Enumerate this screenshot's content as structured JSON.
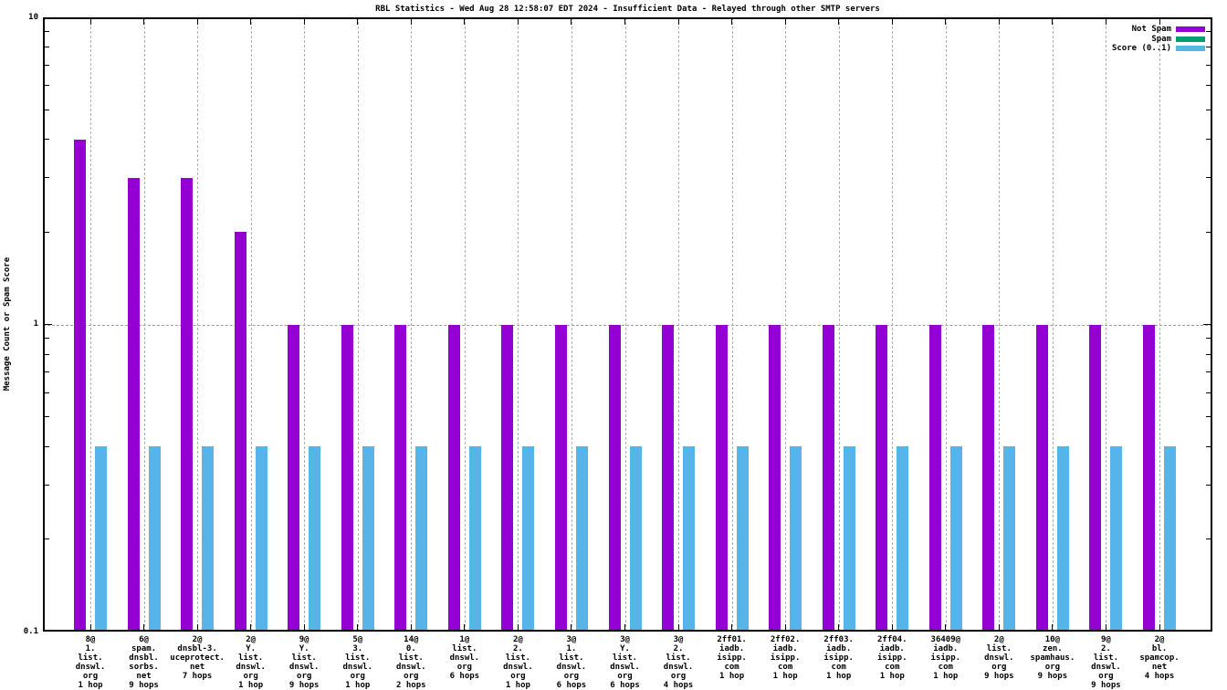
{
  "chart_data": {
    "type": "bar",
    "title": "RBL Statistics - Wed Aug 28 12:58:07 EDT 2024 - Insufficient Data - Relayed through other SMTP servers",
    "ylabel": "Message Count or Spam Score",
    "xlabel": "",
    "y_scale": "log",
    "ylim": [
      0.1,
      10
    ],
    "y_major_tick_labels": [
      "10",
      "1",
      "0.1"
    ],
    "grid": {
      "horizontal_line_at": 1,
      "vertical_lines": "at each category tick",
      "style": "dashed gray"
    },
    "legend": {
      "position": "top-right",
      "entries": [
        {
          "label": "Not Spam",
          "color": "#9400d3"
        },
        {
          "label": "Spam",
          "color": "#009e73"
        },
        {
          "label": "Score (0..1)",
          "color": "#56b4e9"
        }
      ]
    },
    "categories": [
      [
        "8@",
        "1.",
        "list.",
        "dnswl.",
        "org",
        "1 hop"
      ],
      [
        "6@",
        "spam.",
        "dnsbl.",
        "sorbs.",
        "net",
        "9 hops"
      ],
      [
        "2@",
        "dnsbl-3.",
        "uceprotect.",
        "net",
        "7 hops"
      ],
      [
        "2@",
        "Y.",
        "list.",
        "dnswl.",
        "org",
        "1 hop"
      ],
      [
        "9@",
        "Y.",
        "list.",
        "dnswl.",
        "org",
        "9 hops"
      ],
      [
        "5@",
        "3.",
        "list.",
        "dnswl.",
        "org",
        "1 hop"
      ],
      [
        "14@",
        "0.",
        "list.",
        "dnswl.",
        "org",
        "2 hops"
      ],
      [
        "1@",
        "list.",
        "dnswl.",
        "org",
        "6 hops"
      ],
      [
        "2@",
        "2.",
        "list.",
        "dnswl.",
        "org",
        "1 hop"
      ],
      [
        "3@",
        "1.",
        "list.",
        "dnswl.",
        "org",
        "6 hops"
      ],
      [
        "3@",
        "Y.",
        "list.",
        "dnswl.",
        "org",
        "6 hops"
      ],
      [
        "3@",
        "2.",
        "list.",
        "dnswl.",
        "org",
        "4 hops"
      ],
      [
        "2ff01.",
        "iadb.",
        "isipp.",
        "com",
        "1 hop"
      ],
      [
        "2ff02.",
        "iadb.",
        "isipp.",
        "com",
        "1 hop"
      ],
      [
        "2ff03.",
        "iadb.",
        "isipp.",
        "com",
        "1 hop"
      ],
      [
        "2ff04.",
        "iadb.",
        "isipp.",
        "com",
        "1 hop"
      ],
      [
        "36409@",
        "iadb.",
        "isipp.",
        "com",
        "1 hop"
      ],
      [
        "2@",
        "list.",
        "dnswl.",
        "org",
        "9 hops"
      ],
      [
        "10@",
        "zen.",
        "spamhaus.",
        "org",
        "9 hops"
      ],
      [
        "9@",
        "2.",
        "list.",
        "dnswl.",
        "org",
        "9 hops"
      ],
      [
        "2@",
        "bl.",
        "spamcop.",
        "net",
        "4 hops"
      ]
    ],
    "series": [
      {
        "name": "Not Spam",
        "color": "#9400d3",
        "values": [
          4,
          3,
          3,
          2,
          1,
          1,
          1,
          1,
          1,
          1,
          1,
          1,
          1,
          1,
          1,
          1,
          1,
          1,
          1,
          1,
          1
        ]
      },
      {
        "name": "Spam",
        "color": "#009e73",
        "values": [
          0,
          0,
          0,
          0,
          0,
          0,
          0,
          0,
          0,
          0,
          0,
          0,
          0,
          0,
          0,
          0,
          0,
          0,
          0,
          0,
          0
        ]
      },
      {
        "name": "Score (0..1)",
        "color": "#56b4e9",
        "values": [
          0.4,
          0.4,
          0.4,
          0.4,
          0.4,
          0.4,
          0.4,
          0.4,
          0.4,
          0.4,
          0.4,
          0.4,
          0.4,
          0.4,
          0.4,
          0.4,
          0.4,
          0.4,
          0.4,
          0.4,
          0.4
        ]
      }
    ]
  }
}
